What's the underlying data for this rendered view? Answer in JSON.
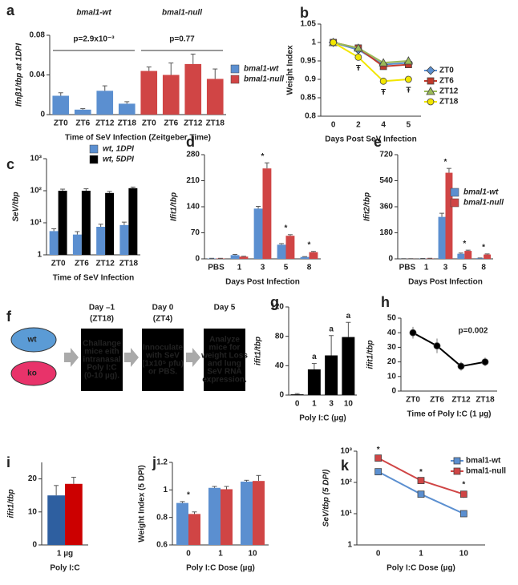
{
  "chart_data": [
    {
      "label": "a",
      "type": "bar",
      "ylabel": "Ifnβ1/tbp at 1DPI",
      "xlabel": "Time of SeV Infection (Zeitgeber Time)",
      "categories": [
        "ZT0",
        "ZT6",
        "ZT12",
        "ZT18",
        "ZT0",
        "ZT6",
        "ZT12",
        "ZT18"
      ],
      "series": [
        {
          "name": "bmal1-wt",
          "color": "#5b8fd0",
          "values": [
            0.019,
            0.005,
            0.024,
            0.011,
            null,
            null,
            null,
            null
          ],
          "errors": [
            0.003,
            0.001,
            0.005,
            0.002,
            null,
            null,
            null,
            null
          ]
        },
        {
          "name": "bmal1-null",
          "color": "#d04545",
          "values": [
            null,
            null,
            null,
            null,
            0.044,
            0.04,
            0.051,
            0.036
          ],
          "errors": [
            null,
            null,
            null,
            null,
            0.004,
            0.012,
            0.01,
            0.01
          ]
        }
      ],
      "groups": [
        {
          "name": "bmal1-wt",
          "p": "p=2.9x10⁻³",
          "color": "#1f3864"
        },
        {
          "name": "bmal1-null",
          "p": "p=0.77",
          "color": "#c00000"
        }
      ],
      "ylim": [
        0,
        0.08
      ],
      "yticks": [
        0,
        0.04,
        0.08
      ],
      "legend": true
    },
    {
      "label": "b",
      "type": "line",
      "ylabel": "Weight Index",
      "xlabel": "Days Post SeV Infection",
      "categories": [
        "0",
        "2",
        "4",
        "5"
      ],
      "series": [
        {
          "name": "ZT0",
          "color": "#5b8fd0",
          "marker": "diamond",
          "values": [
            1,
            0.98,
            0.94,
            0.945
          ]
        },
        {
          "name": "ZT6",
          "color": "#c0392b",
          "marker": "square",
          "values": [
            1,
            0.985,
            0.935,
            0.94
          ]
        },
        {
          "name": "ZT12",
          "color": "#9bbb59",
          "marker": "triangle",
          "values": [
            1,
            0.985,
            0.945,
            0.95
          ]
        },
        {
          "name": "ZT18",
          "color": "#f2e600",
          "marker": "circle",
          "values": [
            1,
            0.96,
            0.895,
            0.9
          ]
        }
      ],
      "significance": [
        null,
        "Ŧ",
        "Ŧ",
        "Ŧ"
      ],
      "ylim": [
        0.8,
        1.05
      ],
      "yticks": [
        0.8,
        0.85,
        0.9,
        0.95,
        1,
        1.05
      ],
      "legend": true
    },
    {
      "label": "c",
      "type": "bar",
      "log": true,
      "ylabel": "SeV/tbp",
      "xlabel": "Time of SeV Infection",
      "categories": [
        "ZT0",
        "ZT6",
        "ZT12",
        "ZT18"
      ],
      "series": [
        {
          "name": "wt, 1DPI",
          "color": "#5b8fd0",
          "values": [
            5.5,
            4.3,
            7.5,
            8.5
          ],
          "errors": [
            1,
            1,
            1.5,
            2
          ]
        },
        {
          "name": "wt, 5DPI",
          "color": "#000000",
          "values": [
            100,
            100,
            85,
            120
          ],
          "errors": [
            12,
            15,
            10,
            10
          ]
        }
      ],
      "ylim": [
        1,
        1000
      ],
      "yticks": [
        1,
        {
          "value": 10,
          "label": "10¹"
        },
        {
          "value": 100,
          "label": "10²"
        },
        {
          "value": 1000,
          "label": "10³"
        }
      ],
      "legend": true
    },
    {
      "label": "d",
      "type": "bar",
      "ylabel": "Ifit1/tbp",
      "xlabel": "Days Post Infection",
      "categories": [
        "PBS",
        "1",
        "3",
        "5",
        "8"
      ],
      "series": [
        {
          "name": "bmal1-wt",
          "color": "#5b8fd0",
          "values": [
            1,
            10,
            135,
            38,
            5
          ],
          "errors": [
            0.5,
            2,
            6,
            3,
            1
          ]
        },
        {
          "name": "bmal1-null",
          "color": "#d04545",
          "values": [
            1,
            6,
            243,
            62,
            18
          ],
          "errors": [
            0.5,
            1,
            15,
            3,
            2
          ]
        }
      ],
      "significance": [
        null,
        null,
        "*",
        "*",
        "*"
      ],
      "ylim": [
        0,
        280
      ],
      "yticks": [
        0,
        70,
        140,
        210,
        280
      ]
    },
    {
      "label": "e",
      "type": "bar",
      "ylabel": "Ifit2/tbp",
      "xlabel": "Days Post Infection",
      "categories": [
        "PBS",
        "1",
        "3",
        "5",
        "8"
      ],
      "series": [
        {
          "name": "bmal1-wt",
          "color": "#5b8fd0",
          "values": [
            1,
            2,
            290,
            35,
            5
          ],
          "errors": [
            0.5,
            1,
            25,
            5,
            1
          ]
        },
        {
          "name": "bmal1-null",
          "color": "#d04545",
          "values": [
            1,
            3,
            595,
            55,
            30
          ],
          "errors": [
            0.5,
            1,
            30,
            5,
            4
          ]
        }
      ],
      "significance": [
        null,
        null,
        "*",
        "*",
        "*"
      ],
      "ylim": [
        0,
        720
      ],
      "yticks": [
        0,
        180,
        360,
        540,
        720
      ],
      "legend": true
    },
    {
      "label": "g",
      "type": "bar",
      "ylabel": "ifit1/tbp",
      "xlabel": "Poly I:C (µg)",
      "categories": [
        "0",
        "1",
        "3",
        "10"
      ],
      "series": [
        {
          "name": "Poly I:C",
          "color": "#000000",
          "values": [
            1,
            35,
            54,
            79
          ],
          "errors": [
            1,
            8,
            27,
            20
          ]
        }
      ],
      "significance": [
        null,
        "a",
        "a",
        "a"
      ],
      "ylim": [
        0,
        120
      ],
      "yticks": [
        0,
        40,
        80,
        120
      ]
    },
    {
      "label": "h",
      "type": "line",
      "ylabel": "ifit1/tbp",
      "xlabel": "Time of Poly I:C (1 µg)",
      "categories": [
        "ZT0",
        "ZT6",
        "ZT12",
        "ZT18"
      ],
      "series": [
        {
          "name": "Poly I:C",
          "color": "#000000",
          "marker": "circle",
          "values": [
            40,
            31,
            17,
            20
          ],
          "errors": [
            4,
            5,
            3,
            3
          ]
        }
      ],
      "annotation": "p=0.002",
      "ylim": [
        0,
        50
      ],
      "yticks": [
        0,
        10,
        20,
        30,
        40,
        50
      ]
    },
    {
      "label": "i",
      "type": "bar",
      "ylabel": "ifit1/tbp",
      "xlabel": "Poly I:C",
      "categories": [
        "1 µg"
      ],
      "series": [
        {
          "name": "bmal1-wt",
          "color": "#2e5fa0",
          "values": [
            15
          ],
          "errors": [
            3
          ]
        },
        {
          "name": "bmal1-null",
          "color": "#cc0000",
          "values": [
            18.5
          ],
          "errors": [
            2
          ]
        }
      ],
      "ylim": [
        0,
        25
      ],
      "yticks": [
        0,
        10,
        20
      ]
    },
    {
      "label": "j",
      "type": "bar",
      "ylabel": "Weight Index (5 DPI)",
      "xlabel": "Poly I:C Dose (µg)",
      "categories": [
        "0",
        "1",
        "10"
      ],
      "series": [
        {
          "name": "bmal1-wt",
          "color": "#5b8fd0",
          "values": [
            0.905,
            1.015,
            1.06
          ],
          "errors": [
            0.01,
            0.01,
            0.01
          ]
        },
        {
          "name": "bmal1-null",
          "color": "#d04545",
          "values": [
            0.825,
            1.005,
            1.065
          ],
          "errors": [
            0.015,
            0.02,
            0.04
          ]
        }
      ],
      "significance": [
        "*",
        null,
        null
      ],
      "ylim": [
        0.6,
        1.2
      ],
      "yticks": [
        0.6,
        0.8,
        1,
        1.2
      ]
    },
    {
      "label": "k",
      "type": "line",
      "log": true,
      "ylabel": "SeV/tbp (5 DPI)",
      "xlabel": "Poly I:C Dose (µg)",
      "categories": [
        "0",
        "1",
        "10"
      ],
      "series": [
        {
          "name": "bmal1-wt",
          "color": "#5b8fd0",
          "marker": "square",
          "values": [
            220,
            42,
            10
          ],
          "errors": [
            40,
            5,
            2
          ]
        },
        {
          "name": "bmal1-null",
          "color": "#d04545",
          "marker": "square",
          "values": [
            600,
            115,
            42
          ],
          "errors": [
            80,
            15,
            10
          ]
        }
      ],
      "significance": [
        "*",
        "*",
        "*"
      ],
      "ylim": [
        1,
        1000
      ],
      "yticks": [
        1,
        {
          "value": 10,
          "label": "10¹"
        },
        {
          "value": 100,
          "label": "10²"
        },
        {
          "value": 1000,
          "label": "10³"
        }
      ],
      "legend": true
    }
  ],
  "panel_f": {
    "label": "f",
    "mice": [
      "wt",
      "ko"
    ],
    "steps": [
      {
        "day": "Day –1",
        "time": "(ZT18)",
        "lines": [
          "Challange",
          "mice eith",
          "intranasal",
          "Poly I:C",
          "(0-10 µg)."
        ]
      },
      {
        "day": "Day 0",
        "time": "(ZT4)",
        "lines": [
          "Innoculate",
          "with SeV",
          "(1x10⁵ pfu)",
          "or PBS."
        ]
      },
      {
        "day": "Day 5",
        "lines": [
          "Analyze",
          "mice for",
          "weight Loss",
          "and lung",
          "SeV RNA",
          "expression."
        ]
      }
    ]
  }
}
